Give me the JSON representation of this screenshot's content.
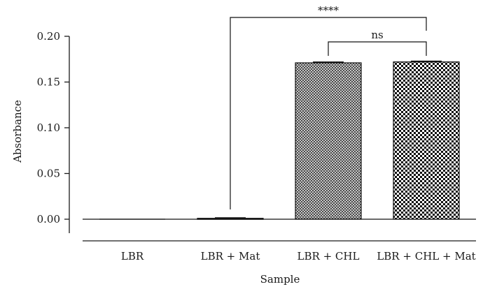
{
  "chart_data": {
    "type": "bar",
    "title": "",
    "xlabel": "Sample",
    "ylabel": "Absorbance",
    "ylim": [
      0,
      0.2
    ],
    "yticks": [
      "0.00",
      "0.05",
      "0.10",
      "0.15",
      "0.20"
    ],
    "categories": [
      "LBR",
      "LBR + Mat",
      "LBR + CHL",
      "LBR + CHL + Mat"
    ],
    "values": [
      0.0,
      0.001,
      0.171,
      0.172
    ],
    "errors": [
      0.0,
      0.0005,
      0.0008,
      0.0008
    ],
    "fill_patterns": [
      "none",
      "dark-solid",
      "fine-checker",
      "coarse-checker"
    ],
    "grid": false,
    "significance": [
      {
        "from": 1,
        "to": 3,
        "label": "****"
      },
      {
        "from": 2,
        "to": 3,
        "label": "ns"
      }
    ]
  }
}
